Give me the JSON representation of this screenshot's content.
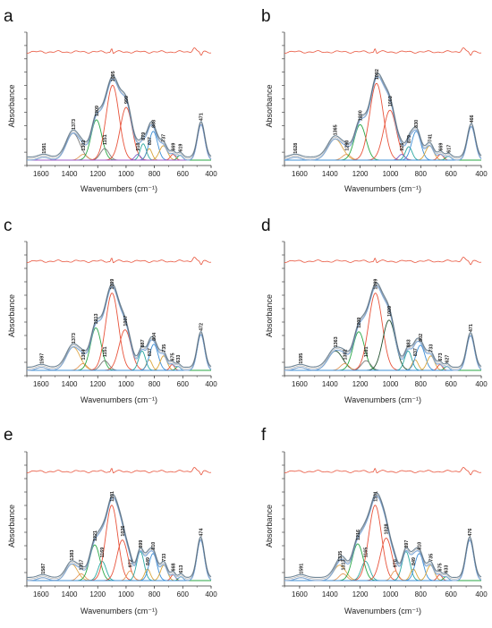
{
  "chart_data": [
    {
      "panel": "a",
      "type": "line",
      "xlabel": "Wavenumbers (cm⁻¹)",
      "ylabel": "Absorbance",
      "xlim": [
        1700,
        400
      ],
      "x_ticks": [
        "1600",
        "1400",
        "1200",
        "1000",
        "800",
        "600",
        "400"
      ],
      "peak_labels": [
        "1581",
        "1373",
        "1302",
        "1209",
        "1151",
        "1095",
        "999",
        "918",
        "879",
        "837",
        "808",
        "737",
        "669",
        "619",
        "471"
      ],
      "components": [
        {
          "center": 1581,
          "height": 0.03,
          "width": 35,
          "color": "#e0a84a"
        },
        {
          "center": 1373,
          "height": 0.28,
          "width": 48,
          "color": "#7a7a7a"
        },
        {
          "center": 1302,
          "height": 0.06,
          "width": 28,
          "color": "#e59a5a"
        },
        {
          "center": 1209,
          "height": 0.42,
          "width": 38,
          "color": "#28a745"
        },
        {
          "center": 1151,
          "height": 0.12,
          "width": 30,
          "color": "#7a7a7a"
        },
        {
          "center": 1095,
          "height": 0.78,
          "width": 45,
          "color": "#e8533b"
        },
        {
          "center": 999,
          "height": 0.55,
          "width": 42,
          "color": "#e8533b"
        },
        {
          "center": 918,
          "height": 0.06,
          "width": 20,
          "color": "#7b5cc7"
        },
        {
          "center": 879,
          "height": 0.17,
          "width": 22,
          "color": "#2ba8a0"
        },
        {
          "center": 837,
          "height": 0.12,
          "width": 20,
          "color": "#d9a53a"
        },
        {
          "center": 808,
          "height": 0.3,
          "width": 30,
          "color": "#3e8fd6"
        },
        {
          "center": 737,
          "height": 0.15,
          "width": 28,
          "color": "#d9a53a"
        },
        {
          "center": 669,
          "height": 0.06,
          "width": 18,
          "color": "#e8533b"
        },
        {
          "center": 619,
          "height": 0.05,
          "width": 18,
          "color": "#28a745"
        },
        {
          "center": 471,
          "height": 0.37,
          "width": 26,
          "color": "#9b59c7"
        }
      ]
    },
    {
      "panel": "b",
      "type": "line",
      "xlabel": "Wavenumbers (cm⁻¹)",
      "ylabel": "Absorbance",
      "xlim": [
        1700,
        400
      ],
      "x_ticks": [
        "1600",
        "1400",
        "1200",
        "1000",
        "800",
        "600",
        "400"
      ],
      "peak_labels": [
        "1628",
        "1365",
        "1290",
        "1200",
        "1092",
        "1003",
        "926",
        "879",
        "830",
        "741",
        "669",
        "617",
        "466"
      ],
      "components": [
        {
          "center": 1628,
          "height": 0.03,
          "width": 35,
          "color": "#e0a84a"
        },
        {
          "center": 1365,
          "height": 0.22,
          "width": 48,
          "color": "#e0a84a"
        },
        {
          "center": 1290,
          "height": 0.06,
          "width": 28,
          "color": "#e59a5a"
        },
        {
          "center": 1200,
          "height": 0.37,
          "width": 38,
          "color": "#28a745"
        },
        {
          "center": 1092,
          "height": 0.8,
          "width": 45,
          "color": "#e8533b"
        },
        {
          "center": 1003,
          "height": 0.52,
          "width": 42,
          "color": "#e8533b"
        },
        {
          "center": 926,
          "height": 0.06,
          "width": 20,
          "color": "#7b5cc7"
        },
        {
          "center": 879,
          "height": 0.14,
          "width": 22,
          "color": "#2ba8a0"
        },
        {
          "center": 830,
          "height": 0.3,
          "width": 30,
          "color": "#3e8fd6"
        },
        {
          "center": 741,
          "height": 0.15,
          "width": 26,
          "color": "#d9a53a"
        },
        {
          "center": 669,
          "height": 0.06,
          "width": 18,
          "color": "#e8533b"
        },
        {
          "center": 617,
          "height": 0.04,
          "width": 18,
          "color": "#28a745"
        },
        {
          "center": 466,
          "height": 0.35,
          "width": 26,
          "color": "#3e8fd6"
        }
      ]
    },
    {
      "panel": "c",
      "type": "line",
      "xlabel": "Wavenumbers (cm⁻¹)",
      "ylabel": "Absorbance",
      "xlim": [
        1700,
        400
      ],
      "x_ticks": [
        "1600",
        "1400",
        "1200",
        "1000",
        "800",
        "600",
        "400"
      ],
      "peak_labels": [
        "1597",
        "1373",
        "1304",
        "1213",
        "1151",
        "1099",
        "1007",
        "887",
        "837",
        "804",
        "735",
        "675",
        "633",
        "472"
      ],
      "components": [
        {
          "center": 1597,
          "height": 0.03,
          "width": 35,
          "color": "#e0a84a"
        },
        {
          "center": 1373,
          "height": 0.24,
          "width": 48,
          "color": "#e0a84a"
        },
        {
          "center": 1304,
          "height": 0.07,
          "width": 28,
          "color": "#e59a5a"
        },
        {
          "center": 1213,
          "height": 0.44,
          "width": 38,
          "color": "#28a745"
        },
        {
          "center": 1151,
          "height": 0.1,
          "width": 30,
          "color": "#7a7a7a"
        },
        {
          "center": 1099,
          "height": 0.8,
          "width": 45,
          "color": "#e8533b"
        },
        {
          "center": 1007,
          "height": 0.42,
          "width": 42,
          "color": "#e8533b"
        },
        {
          "center": 887,
          "height": 0.2,
          "width": 24,
          "color": "#2ba8a0"
        },
        {
          "center": 837,
          "height": 0.11,
          "width": 20,
          "color": "#d9a53a"
        },
        {
          "center": 804,
          "height": 0.27,
          "width": 30,
          "color": "#3e8fd6"
        },
        {
          "center": 735,
          "height": 0.15,
          "width": 24,
          "color": "#d9a53a"
        },
        {
          "center": 675,
          "height": 0.06,
          "width": 16,
          "color": "#e8533b"
        },
        {
          "center": 633,
          "height": 0.04,
          "width": 16,
          "color": "#28a745"
        },
        {
          "center": 472,
          "height": 0.37,
          "width": 26,
          "color": "#3e8fd6"
        }
      ]
    },
    {
      "panel": "d",
      "type": "line",
      "xlabel": "Wavenumbers (cm⁻¹)",
      "ylabel": "Absorbance",
      "xlim": [
        1700,
        400
      ],
      "x_ticks": [
        "1600",
        "1400",
        "1200",
        "1000",
        "800",
        "600",
        "400"
      ],
      "peak_labels": [
        "1595",
        "1363",
        "1302",
        "1209",
        "1161",
        "1099",
        "1009",
        "883",
        "837",
        "802",
        "733",
        "673",
        "627",
        "471"
      ],
      "components": [
        {
          "center": 1595,
          "height": 0.03,
          "width": 35,
          "color": "#e0a84a"
        },
        {
          "center": 1363,
          "height": 0.2,
          "width": 48,
          "color": "#1f4d2b"
        },
        {
          "center": 1302,
          "height": 0.07,
          "width": 28,
          "color": "#e59a5a"
        },
        {
          "center": 1209,
          "height": 0.4,
          "width": 38,
          "color": "#28a745"
        },
        {
          "center": 1161,
          "height": 0.1,
          "width": 30,
          "color": "#7a7a7a"
        },
        {
          "center": 1099,
          "height": 0.8,
          "width": 45,
          "color": "#e8533b"
        },
        {
          "center": 1009,
          "height": 0.52,
          "width": 42,
          "color": "#1f4d2b"
        },
        {
          "center": 883,
          "height": 0.2,
          "width": 24,
          "color": "#2ba8a0"
        },
        {
          "center": 837,
          "height": 0.11,
          "width": 20,
          "color": "#d9a53a"
        },
        {
          "center": 802,
          "height": 0.26,
          "width": 30,
          "color": "#3e8fd6"
        },
        {
          "center": 733,
          "height": 0.15,
          "width": 24,
          "color": "#d9a53a"
        },
        {
          "center": 673,
          "height": 0.06,
          "width": 16,
          "color": "#e8533b"
        },
        {
          "center": 627,
          "height": 0.04,
          "width": 16,
          "color": "#28a745"
        },
        {
          "center": 471,
          "height": 0.36,
          "width": 26,
          "color": "#3e8fd6"
        }
      ]
    },
    {
      "panel": "e",
      "type": "line",
      "xlabel": "Wavenumbers (cm⁻¹)",
      "ylabel": "Absorbance",
      "xlim": [
        1700,
        400
      ],
      "x_ticks": [
        "1600",
        "1400",
        "1200",
        "1000",
        "800",
        "600",
        "400"
      ],
      "peak_labels": [
        "1587",
        "1383",
        "1317",
        "1221",
        "1169",
        "1101",
        "1026",
        "972",
        "899",
        "849",
        "810",
        "733",
        "668",
        "613",
        "474"
      ],
      "components": [
        {
          "center": 1587,
          "height": 0.03,
          "width": 35,
          "color": "#e0a84a"
        },
        {
          "center": 1383,
          "height": 0.17,
          "width": 40,
          "color": "#e0a84a"
        },
        {
          "center": 1317,
          "height": 0.07,
          "width": 26,
          "color": "#e59a5a"
        },
        {
          "center": 1221,
          "height": 0.37,
          "width": 36,
          "color": "#28a745"
        },
        {
          "center": 1169,
          "height": 0.2,
          "width": 28,
          "color": "#2ba8a0"
        },
        {
          "center": 1101,
          "height": 0.78,
          "width": 42,
          "color": "#e8533b"
        },
        {
          "center": 1026,
          "height": 0.42,
          "width": 38,
          "color": "#e8533b"
        },
        {
          "center": 972,
          "height": 0.1,
          "width": 22,
          "color": "#e59a5a"
        },
        {
          "center": 899,
          "height": 0.3,
          "width": 26,
          "color": "#2ba8a0"
        },
        {
          "center": 849,
          "height": 0.12,
          "width": 20,
          "color": "#d9a53a"
        },
        {
          "center": 810,
          "height": 0.28,
          "width": 28,
          "color": "#3e8fd6"
        },
        {
          "center": 733,
          "height": 0.16,
          "width": 24,
          "color": "#d9a53a"
        },
        {
          "center": 668,
          "height": 0.06,
          "width": 16,
          "color": "#e8533b"
        },
        {
          "center": 613,
          "height": 0.04,
          "width": 16,
          "color": "#28a745"
        },
        {
          "center": 474,
          "height": 0.42,
          "width": 26,
          "color": "#3e8fd6"
        }
      ]
    },
    {
      "panel": "f",
      "type": "line",
      "xlabel": "Wavenumbers (cm⁻¹)",
      "ylabel": "Absorbance",
      "xlim": [
        1700,
        400
      ],
      "x_ticks": [
        "1600",
        "1400",
        "1200",
        "1000",
        "800",
        "600",
        "400"
      ],
      "peak_labels": [
        "1591",
        "1335",
        "1313",
        "1216",
        "1165",
        "1101",
        "1028",
        "970",
        "897",
        "849",
        "810",
        "735",
        "675",
        "633",
        "476"
      ],
      "components": [
        {
          "center": 1591,
          "height": 0.03,
          "width": 35,
          "color": "#e0a84a"
        },
        {
          "center": 1335,
          "height": 0.16,
          "width": 40,
          "color": "#e0a84a"
        },
        {
          "center": 1313,
          "height": 0.07,
          "width": 26,
          "color": "#e59a5a"
        },
        {
          "center": 1216,
          "height": 0.38,
          "width": 36,
          "color": "#28a745"
        },
        {
          "center": 1165,
          "height": 0.2,
          "width": 28,
          "color": "#2ba8a0"
        },
        {
          "center": 1101,
          "height": 0.78,
          "width": 42,
          "color": "#e8533b"
        },
        {
          "center": 1028,
          "height": 0.44,
          "width": 38,
          "color": "#e8533b"
        },
        {
          "center": 970,
          "height": 0.1,
          "width": 22,
          "color": "#e59a5a"
        },
        {
          "center": 897,
          "height": 0.3,
          "width": 26,
          "color": "#2ba8a0"
        },
        {
          "center": 849,
          "height": 0.12,
          "width": 20,
          "color": "#d9a53a"
        },
        {
          "center": 810,
          "height": 0.28,
          "width": 28,
          "color": "#3e8fd6"
        },
        {
          "center": 735,
          "height": 0.16,
          "width": 24,
          "color": "#d9a53a"
        },
        {
          "center": 675,
          "height": 0.06,
          "width": 16,
          "color": "#e8533b"
        },
        {
          "center": 633,
          "height": 0.04,
          "width": 16,
          "color": "#28a745"
        },
        {
          "center": 476,
          "height": 0.42,
          "width": 26,
          "color": "#3e8fd6"
        }
      ]
    }
  ],
  "colors": {
    "fit_outer": "#6f8596",
    "fit_inner": "#7fa8d8",
    "fit_dark": "#444444",
    "residual": "#e8533b",
    "baseline": "#e0a84a",
    "axis": "#333333"
  }
}
